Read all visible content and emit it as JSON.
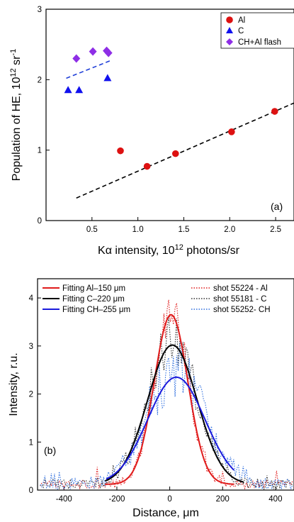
{
  "chart_data": [
    {
      "type": "scatter",
      "panel_label": "(a)",
      "xlabel": "Kα intensity, 10¹² photons/sr",
      "ylabel": "Population of HE, 10¹² sr⁻¹",
      "xlim": [
        0,
        2.7
      ],
      "ylim": [
        0,
        3
      ],
      "x_ticks": [
        "0.5",
        "1.0",
        "1.5",
        "2.0",
        "2.5"
      ],
      "y_ticks": [
        "0",
        "1",
        "2",
        "3"
      ],
      "legend_position": "top-right",
      "series": [
        {
          "name": "Al",
          "marker": "circle",
          "color": "#dd1111",
          "x": [
            0.81,
            1.1,
            1.41,
            2.02,
            2.49
          ],
          "y": [
            0.99,
            0.77,
            0.95,
            1.26,
            1.55
          ]
        },
        {
          "name": "C",
          "marker": "triangle",
          "color": "#1111ee",
          "x": [
            0.24,
            0.36,
            0.67
          ],
          "y": [
            1.85,
            1.85,
            2.02
          ]
        },
        {
          "name": "CH+Al flash",
          "marker": "diamond",
          "color": "#8e2ee6",
          "x": [
            0.33,
            0.51,
            0.66,
            0.68
          ],
          "y": [
            2.3,
            2.4,
            2.41,
            2.38
          ]
        }
      ],
      "fit_lines": [
        {
          "color": "#000000",
          "x": [
            0.33,
            2.72
          ],
          "y": [
            0.32,
            1.68
          ]
        },
        {
          "color": "#1f3fd8",
          "x": [
            0.22,
            0.72
          ],
          "y": [
            2.02,
            2.28
          ]
        }
      ]
    },
    {
      "type": "line",
      "panel_label": "(b)",
      "xlabel": "Distance, μm",
      "ylabel": "Intensity, r.u.",
      "xlim": [
        -500,
        470
      ],
      "ylim": [
        0,
        4.4
      ],
      "x_ticks": [
        "-400",
        "-200",
        "0",
        "200",
        "400"
      ],
      "y_ticks": [
        "0",
        "1",
        "2",
        "3",
        "4"
      ],
      "legend_position": "top",
      "series": [
        {
          "name": "Fitting Al–150 μm",
          "style": "solid",
          "color": "#e01b1b",
          "amp": 3.65,
          "center": 5,
          "fwhm": 150,
          "base": 0.12,
          "xrange": [
            -245,
            245
          ]
        },
        {
          "name": "Fitting C–220 μm",
          "style": "solid",
          "color": "#000000",
          "amp": 3.02,
          "center": 10,
          "fwhm": 220,
          "base": 0.12,
          "xrange": [
            -245,
            280
          ]
        },
        {
          "name": "Fitting CH–255 μm",
          "style": "solid",
          "color": "#1a1adc",
          "amp": 2.35,
          "center": 25,
          "fwhm": 255,
          "base": 0.12,
          "xrange": [
            -240,
            245
          ]
        },
        {
          "name": "shot 55224 - Al",
          "style": "dotted",
          "color": "#e01b1b",
          "amp": 3.65,
          "center": 5,
          "fwhm": 150,
          "noise": 0.35,
          "seed": 3
        },
        {
          "name": "shot 55181 - C",
          "style": "dotted",
          "color": "#333333",
          "amp": 3.02,
          "center": 10,
          "fwhm": 220,
          "noise": 0.45,
          "seed": 7
        },
        {
          "name": "shot 55252- CH",
          "style": "dotted",
          "color": "#2f6fdf",
          "amp": 2.35,
          "center": 25,
          "fwhm": 255,
          "noise": 0.5,
          "seed": 11
        }
      ]
    }
  ]
}
